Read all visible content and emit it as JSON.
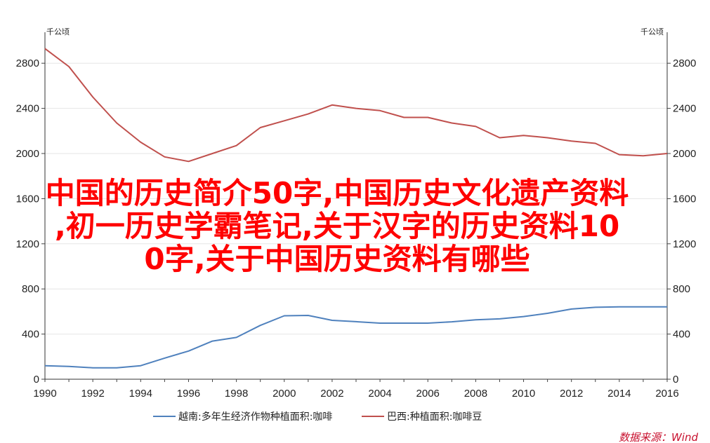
{
  "chart_data": {
    "type": "line",
    "x": [
      1990,
      1991,
      1992,
      1993,
      1994,
      1995,
      1996,
      1997,
      1998,
      1999,
      2000,
      2001,
      2002,
      2003,
      2004,
      2005,
      2006,
      2007,
      2008,
      2009,
      2010,
      2011,
      2012,
      2013,
      2014,
      2015,
      2016
    ],
    "xticks": [
      "1990",
      "1992",
      "1994",
      "1996",
      "1998",
      "2000",
      "2002",
      "2004",
      "2006",
      "2008",
      "2010",
      "2012",
      "2014",
      "2016"
    ],
    "yticks": [
      "0",
      "400",
      "800",
      "1200",
      "1600",
      "2000",
      "2400",
      "2800"
    ],
    "ylim": [
      0,
      3000
    ],
    "xlim": [
      1990,
      2016
    ],
    "unit_left": "千公顷",
    "unit_right": "千公顷",
    "grid": true,
    "legend_position": "bottom",
    "series": [
      {
        "name": "越南:多年生经济作物种植面积:咖啡",
        "color": "#4f81bd",
        "values": [
          119,
          113,
          101,
          101,
          120,
          187,
          250,
          338,
          370,
          477,
          562,
          565,
          522,
          510,
          497,
          497,
          497,
          509,
          526,
          535,
          555,
          584,
          622,
          637,
          641,
          641,
          641
        ]
      },
      {
        "name": "巴西:种植面积:咖啡豆",
        "color": "#c0504d",
        "values": [
          2930,
          2770,
          2500,
          2270,
          2100,
          1970,
          1930,
          2000,
          2070,
          2230,
          2290,
          2350,
          2430,
          2400,
          2380,
          2320,
          2320,
          2270,
          2240,
          2140,
          2160,
          2140,
          2110,
          2090,
          1990,
          1980,
          2000
        ]
      }
    ]
  },
  "overlay": {
    "line1": "中国的历史简介50字,中国历史文化遗产资料",
    "line2": ",初一历史学霸笔记,关于汉字的历史资料10",
    "line3": "0字,关于中国历史资料有哪些",
    "color": "#ff0000"
  },
  "source": "数据来源：Wind"
}
